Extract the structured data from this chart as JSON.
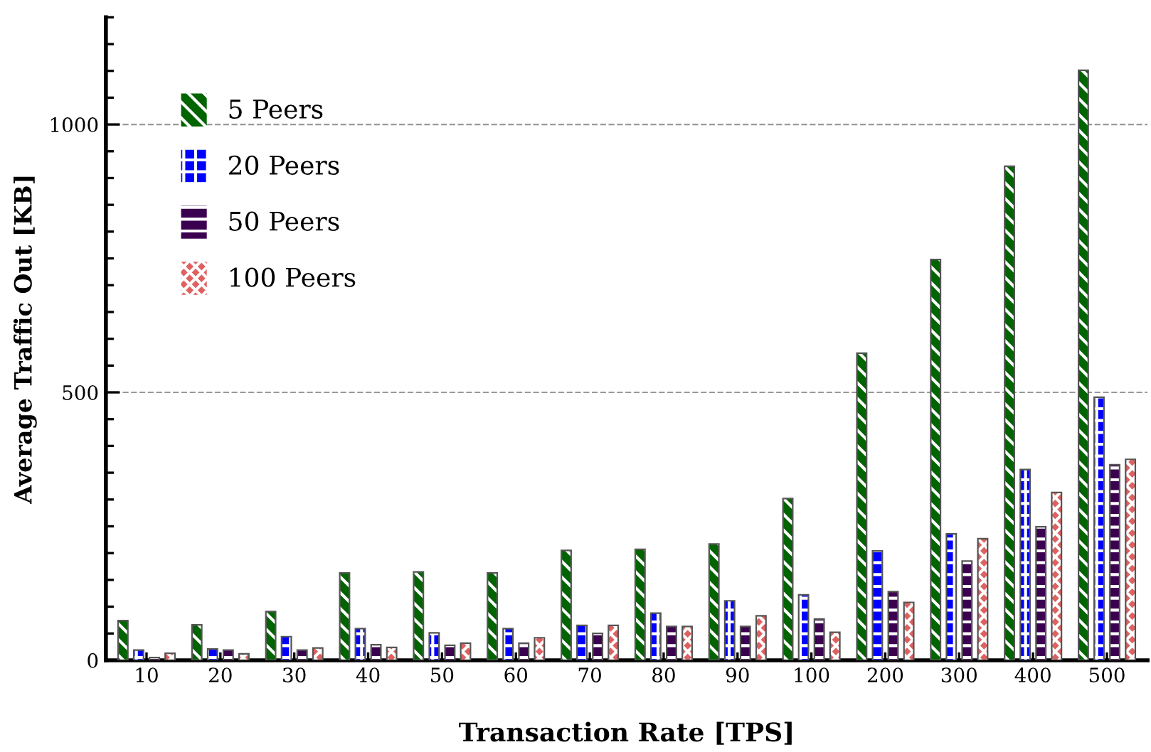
{
  "chart_data": {
    "type": "bar",
    "xlabel": "Transaction Rate [TPS]",
    "ylabel": "Average Traffic Out [KB]",
    "categories": [
      "10",
      "20",
      "30",
      "40",
      "50",
      "60",
      "70",
      "80",
      "90",
      "100",
      "200",
      "300",
      "400",
      "500"
    ],
    "series": [
      {
        "name": "5 Peers",
        "color": "#006400",
        "values": [
          74,
          66,
          91,
          163,
          165,
          163,
          205,
          207,
          217,
          302,
          573,
          748,
          922,
          1101
        ]
      },
      {
        "name": "20 Peers",
        "color": "#0000ff",
        "values": [
          19,
          21,
          44,
          59,
          51,
          59,
          65,
          88,
          111,
          122,
          204,
          236,
          356,
          491
        ]
      },
      {
        "name": "50 Peers",
        "color": "#3c0050",
        "values": [
          5,
          19,
          19,
          29,
          28,
          32,
          50,
          63,
          63,
          77,
          128,
          185,
          249,
          365
        ]
      },
      {
        "name": "100 Peers",
        "color": "#e06060",
        "values": [
          13,
          12,
          23,
          24,
          32,
          42,
          65,
          63,
          83,
          52,
          108,
          227,
          313,
          375
        ]
      }
    ],
    "ylim": [
      0,
      1200
    ],
    "yticks": [
      0,
      {
        "value": 50,
        "label": null
      },
      {
        "value": 100,
        "label": null
      },
      {
        "value": 150,
        "label": null
      },
      {
        "value": 200,
        "label": null
      },
      {
        "value": 250,
        "label": null
      },
      {
        "value": 300,
        "label": null
      },
      {
        "value": 350,
        "label": null
      },
      {
        "value": 400,
        "label": null
      },
      {
        "value": 450,
        "label": null
      },
      500,
      {
        "value": 550,
        "label": null
      },
      {
        "value": 600,
        "label": null
      },
      {
        "value": 650,
        "label": null
      },
      {
        "value": 700,
        "label": null
      },
      {
        "value": 750,
        "label": null
      },
      {
        "value": 800,
        "label": null
      },
      {
        "value": 850,
        "label": null
      },
      {
        "value": 900,
        "label": null
      },
      {
        "value": 950,
        "label": null
      },
      1000,
      {
        "value": 1050,
        "label": null
      },
      {
        "value": 1100,
        "label": null
      },
      {
        "value": 1150,
        "label": null
      },
      {
        "value": 1200,
        "label": null
      }
    ],
    "grid": "y",
    "legend": "left"
  }
}
